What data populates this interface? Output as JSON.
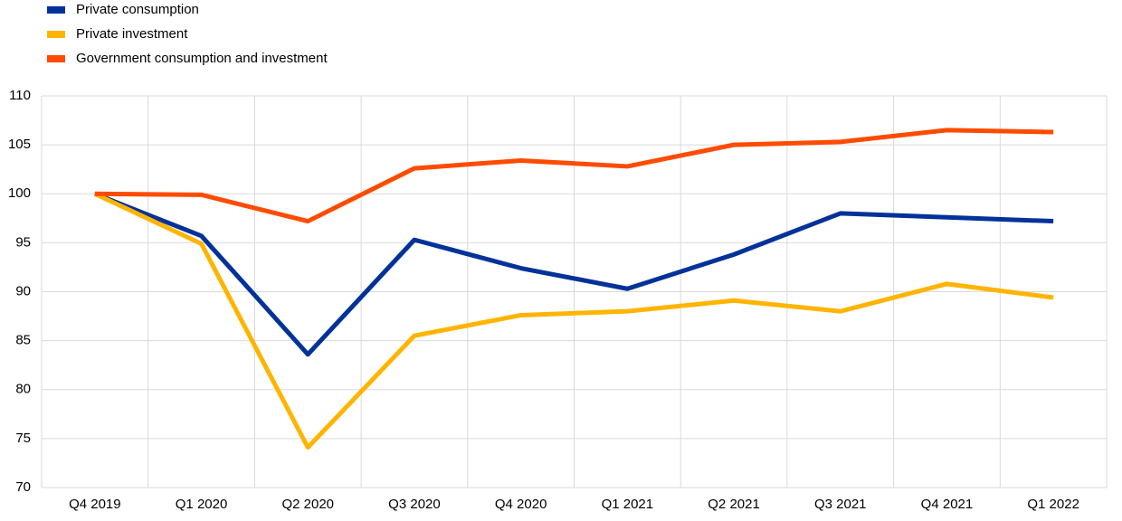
{
  "chart_data": {
    "type": "line",
    "categories": [
      "Q4 2019",
      "Q1 2020",
      "Q2 2020",
      "Q3 2020",
      "Q4 2020",
      "Q1 2021",
      "Q2 2021",
      "Q3 2021",
      "Q4 2021",
      "Q1 2022"
    ],
    "series": [
      {
        "name": "Private consumption",
        "color": "#003299",
        "values": [
          100,
          95.7,
          83.6,
          95.3,
          92.4,
          90.3,
          93.8,
          98.0,
          97.6,
          97.2
        ]
      },
      {
        "name": "Private investment",
        "color": "#ffb400",
        "values": [
          100,
          94.9,
          74.1,
          85.5,
          87.6,
          88.0,
          89.1,
          88.0,
          90.8,
          89.4
        ]
      },
      {
        "name": "Government consumption and investment",
        "color": "#ff4b00",
        "values": [
          100,
          99.9,
          97.2,
          102.6,
          103.4,
          102.8,
          105.0,
          105.3,
          106.5,
          106.3
        ]
      }
    ],
    "ylim": [
      70,
      110
    ],
    "yticks": [
      70,
      75,
      80,
      85,
      90,
      95,
      100,
      105,
      110
    ],
    "grid": true,
    "legend": "top-left"
  }
}
